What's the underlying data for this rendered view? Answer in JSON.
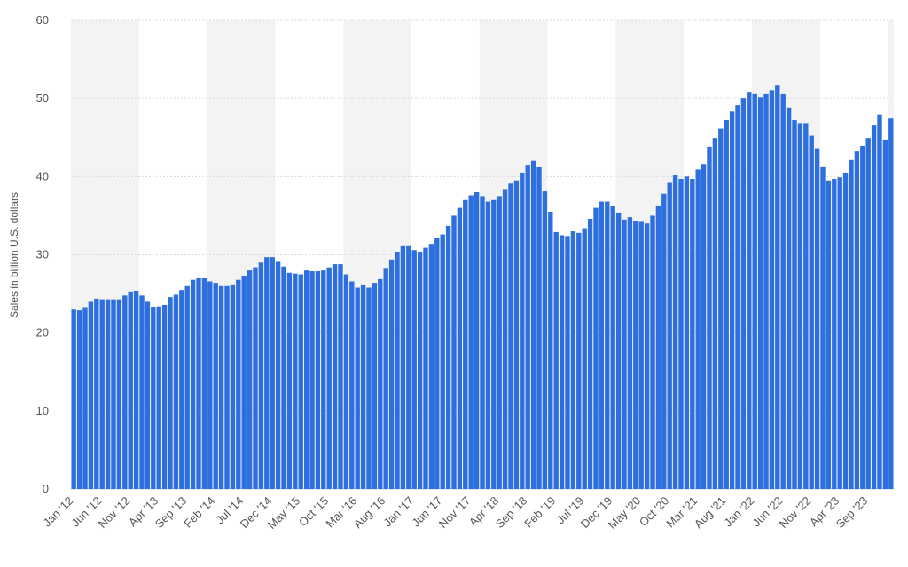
{
  "chart_data": {
    "type": "bar",
    "title": "",
    "xlabel": "",
    "ylabel": "Sales in billion U.S. dollars",
    "ylim": [
      0,
      60
    ],
    "yticks": [
      "0",
      "10",
      "20",
      "30",
      "40",
      "50",
      "60"
    ],
    "grid": true,
    "bar_color": "#2d6fdf",
    "band_color": "#f3f3f3",
    "tick_labels": [
      "Jan '12",
      "Jun '12",
      "Nov '12",
      "Apr '13",
      "Sep '13",
      "Feb '14",
      "Jul '14",
      "Dec '14",
      "May '15",
      "Oct '15",
      "Mar '16",
      "Aug '16",
      "Jan '17",
      "Jun '17",
      "Nov '17",
      "Apr '18",
      "Sep '18",
      "Feb '19",
      "Jul '19",
      "Dec '19",
      "May '20",
      "Oct '20",
      "Mar '21",
      "Aug '21",
      "Jan '22",
      "Jun '22",
      "Nov '22",
      "Apr '23",
      "Sep '23"
    ],
    "start_month": "2012-01",
    "values": [
      23.0,
      22.9,
      23.2,
      24.0,
      24.4,
      24.2,
      24.2,
      24.2,
      24.2,
      24.8,
      25.2,
      25.4,
      24.8,
      24.0,
      23.3,
      23.4,
      23.6,
      24.6,
      24.9,
      25.5,
      26.0,
      26.8,
      27.0,
      27.0,
      26.6,
      26.3,
      26.0,
      26.0,
      26.1,
      26.8,
      27.3,
      28.0,
      28.4,
      29.0,
      29.7,
      29.7,
      29.1,
      28.5,
      27.7,
      27.6,
      27.5,
      28.0,
      27.9,
      27.9,
      28.0,
      28.4,
      28.8,
      28.8,
      27.5,
      26.6,
      25.8,
      26.1,
      25.8,
      26.3,
      26.9,
      28.2,
      29.4,
      30.4,
      31.1,
      31.1,
      30.6,
      30.3,
      30.9,
      31.4,
      32.1,
      32.6,
      33.7,
      35.0,
      36.0,
      37.0,
      37.6,
      38.0,
      37.5,
      36.8,
      37.0,
      37.5,
      38.4,
      39.1,
      39.5,
      40.5,
      41.5,
      42.0,
      41.2,
      38.1,
      35.5,
      32.9,
      32.5,
      32.4,
      33.0,
      32.8,
      33.4,
      34.6,
      36.0,
      36.8,
      36.8,
      36.2,
      35.4,
      34.5,
      34.8,
      34.3,
      34.2,
      34.0,
      35.0,
      36.3,
      37.8,
      39.3,
      40.2,
      39.7,
      40.0,
      39.7,
      40.9,
      41.6,
      43.8,
      44.9,
      46.1,
      47.3,
      48.4,
      49.1,
      50.0,
      50.8,
      50.6,
      50.1,
      50.6,
      51.0,
      51.7,
      50.6,
      48.8,
      47.2,
      46.8,
      46.8,
      45.3,
      43.6,
      41.3,
      39.5,
      39.7,
      39.9,
      40.5,
      42.1,
      43.2,
      43.9,
      44.9,
      46.6,
      47.9,
      44.7,
      47.5
    ]
  }
}
